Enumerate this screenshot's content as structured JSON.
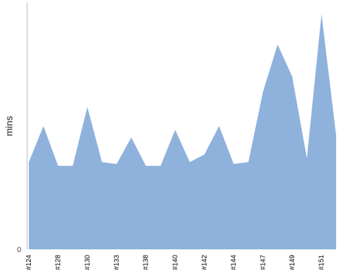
{
  "chart_data": {
    "type": "area",
    "title": "",
    "xlabel": "",
    "ylabel": "mins",
    "y_zero_label": "0",
    "ylim": [
      0,
      130
    ],
    "grid": false,
    "legend": "none",
    "color": "#8FB2DC",
    "axis_color": "#BBBBBB",
    "x_tick_labels": [
      "#124",
      "#128",
      "#130",
      "#133",
      "#138",
      "#140",
      "#142",
      "#144",
      "#147",
      "#149",
      "#151"
    ],
    "x_tick_indices": [
      0,
      2,
      4,
      6,
      8,
      10,
      12,
      14,
      16,
      18,
      20
    ],
    "values": [
      46,
      65,
      44,
      44,
      75,
      46,
      45,
      59,
      44,
      44,
      63,
      46,
      50,
      65,
      45,
      46,
      83,
      108,
      91,
      48,
      124,
      60
    ]
  }
}
